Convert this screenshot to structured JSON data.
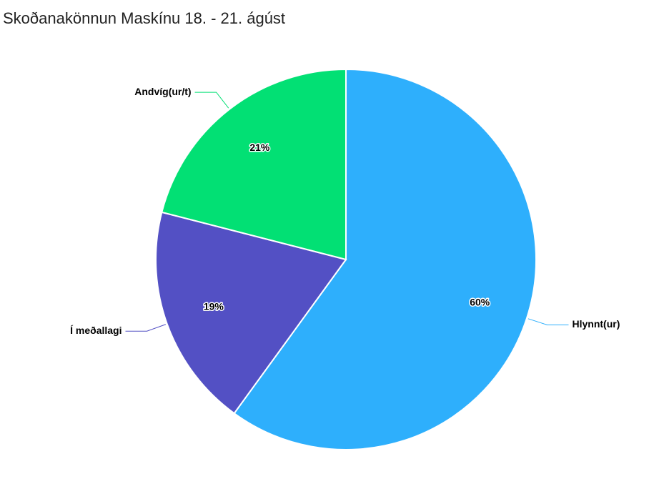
{
  "chart_data": {
    "type": "pie",
    "title": "Skoðanakönnun Maskínu 18. - 21. ágúst",
    "categories": [
      "Hlynnt(ur)",
      "Í meðallagi",
      "Andvíg(ur/t)"
    ],
    "values": [
      60,
      19,
      21
    ],
    "value_labels": [
      "60%",
      "19%",
      "21%"
    ],
    "colors": [
      "#2eaffc",
      "#5350c4",
      "#02e074"
    ]
  }
}
